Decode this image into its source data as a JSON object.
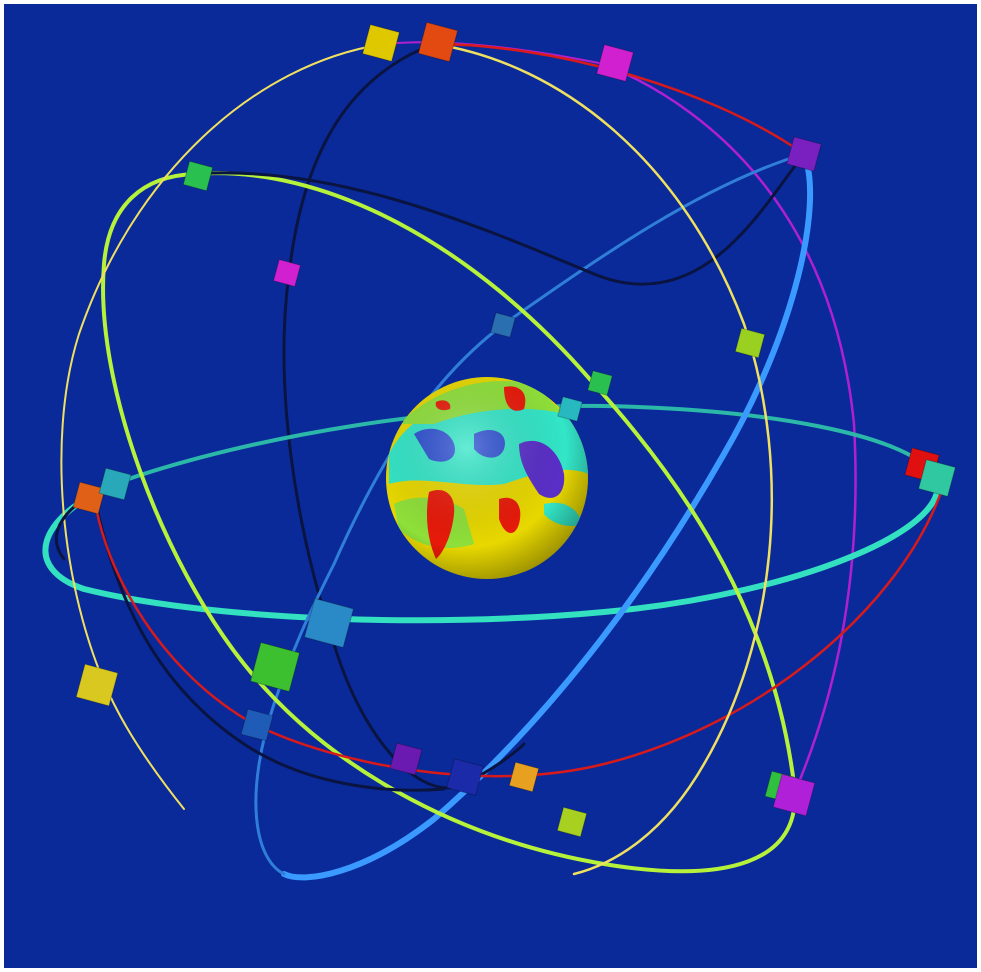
{
  "scene": {
    "background": "#0a2a9a",
    "frame": "#ffffff",
    "globe": {
      "colors": [
        "#f2e200",
        "#8fe03a",
        "#33e6c8",
        "#2c4fd0",
        "#e81a0a"
      ]
    },
    "orbits": [
      {
        "name": "equatorial-orbit",
        "color": "#33e0c0"
      },
      {
        "name": "blue-orbit",
        "color": "#3a9aff"
      },
      {
        "name": "green-orbit",
        "color": "#b6f23a"
      },
      {
        "name": "dark-orbit",
        "color": "#0a1440"
      },
      {
        "name": "purple-orbit",
        "color": "#b020d0"
      },
      {
        "name": "red-orbit",
        "color": "#d81a1a"
      },
      {
        "name": "yellow-orbit",
        "color": "#f0e060"
      }
    ],
    "satellites": [
      "yellow",
      "orange-red",
      "magenta",
      "purple",
      "green",
      "magenta",
      "yellow-green",
      "steel-blue",
      "green",
      "teal",
      "red",
      "teal",
      "orange",
      "teal",
      "steel-blue",
      "green",
      "yellow",
      "steel-blue",
      "purple",
      "navy",
      "orange",
      "yellow-green",
      "green",
      "purple"
    ]
  }
}
